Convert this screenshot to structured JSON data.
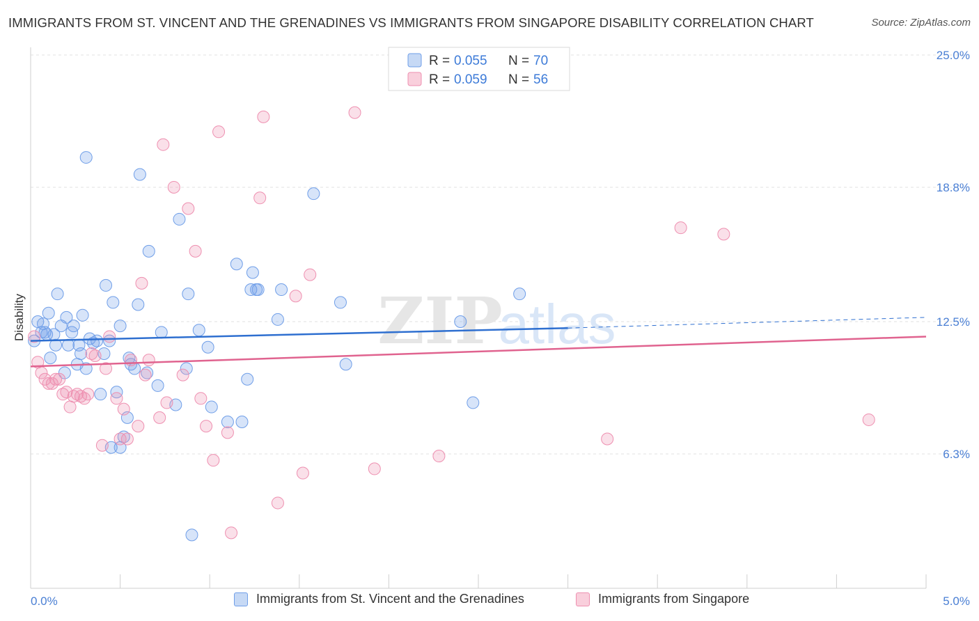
{
  "title": "IMMIGRANTS FROM ST. VINCENT AND THE GRENADINES VS IMMIGRANTS FROM SINGAPORE DISABILITY CORRELATION CHART",
  "source": "Source: ZipAtlas.com",
  "watermark": {
    "zip": "ZIP",
    "atlas": "atlas"
  },
  "legend_box": {
    "r_label": "R =",
    "n_label": "N =",
    "items": [
      {
        "r": "0.055",
        "n": "70",
        "color": "#6f9ee8"
      },
      {
        "r": "0.059",
        "n": "56",
        "color": "#ee8fb0"
      }
    ]
  },
  "chart_data": {
    "type": "scatter",
    "ylabel": "Disability",
    "xlim": [
      0,
      5
    ],
    "ylim": [
      0,
      25.0
    ],
    "x_ticks": [
      "0.0%",
      "5.0%"
    ],
    "y_ticks": [
      {
        "value": 25.0,
        "label": "25.0%"
      },
      {
        "value": 18.8,
        "label": "18.8%"
      },
      {
        "value": 12.5,
        "label": "12.5%"
      },
      {
        "value": 6.3,
        "label": "6.3%"
      }
    ],
    "grid": true,
    "series": [
      {
        "name": "Immigrants from St. Vincent and the Grenadines",
        "color": "#6f9ee8",
        "trend": {
          "x0": 0,
          "y0": 11.6,
          "x1": 3.0,
          "y1": 12.2,
          "dash_x1": 5.0,
          "dash_y1": 12.7
        },
        "points": [
          [
            0.02,
            11.6
          ],
          [
            0.04,
            12.5
          ],
          [
            0.06,
            12.0
          ],
          [
            0.07,
            12.4
          ],
          [
            0.08,
            12.0
          ],
          [
            0.09,
            11.9
          ],
          [
            0.1,
            12.9
          ],
          [
            0.11,
            10.8
          ],
          [
            0.13,
            11.9
          ],
          [
            0.14,
            11.4
          ],
          [
            0.15,
            13.8
          ],
          [
            0.17,
            12.3
          ],
          [
            0.19,
            10.1
          ],
          [
            0.2,
            12.7
          ],
          [
            0.21,
            11.4
          ],
          [
            0.23,
            12.0
          ],
          [
            0.24,
            12.3
          ],
          [
            0.26,
            10.5
          ],
          [
            0.27,
            11.4
          ],
          [
            0.28,
            11.0
          ],
          [
            0.29,
            12.8
          ],
          [
            0.31,
            10.3
          ],
          [
            0.31,
            20.2
          ],
          [
            0.33,
            11.7
          ],
          [
            0.35,
            11.5
          ],
          [
            0.37,
            11.6
          ],
          [
            0.39,
            9.1
          ],
          [
            0.41,
            11.0
          ],
          [
            0.42,
            14.2
          ],
          [
            0.44,
            11.6
          ],
          [
            0.46,
            13.4
          ],
          [
            0.48,
            9.2
          ],
          [
            0.5,
            12.3
          ],
          [
            0.52,
            7.1
          ],
          [
            0.54,
            8.0
          ],
          [
            0.56,
            10.5
          ],
          [
            0.58,
            10.3
          ],
          [
            0.6,
            13.3
          ],
          [
            0.61,
            19.4
          ],
          [
            0.66,
            15.8
          ],
          [
            0.71,
            9.5
          ],
          [
            0.73,
            12.0
          ],
          [
            0.81,
            8.6
          ],
          [
            0.83,
            17.3
          ],
          [
            0.87,
            10.3
          ],
          [
            0.88,
            13.8
          ],
          [
            0.9,
            2.5
          ],
          [
            0.94,
            12.1
          ],
          [
            0.99,
            11.3
          ],
          [
            1.01,
            8.5
          ],
          [
            1.1,
            7.8
          ],
          [
            1.15,
            15.2
          ],
          [
            1.18,
            7.8
          ],
          [
            1.21,
            9.8
          ],
          [
            1.23,
            14.0
          ],
          [
            1.24,
            14.8
          ],
          [
            1.26,
            14.0
          ],
          [
            1.27,
            14.0
          ],
          [
            1.38,
            12.6
          ],
          [
            1.4,
            14.0
          ],
          [
            1.58,
            18.5
          ],
          [
            1.73,
            13.4
          ],
          [
            1.76,
            10.5
          ],
          [
            2.4,
            12.5
          ],
          [
            2.47,
            8.7
          ],
          [
            2.73,
            13.8
          ],
          [
            0.5,
            6.6
          ],
          [
            0.45,
            6.6
          ],
          [
            0.55,
            10.8
          ],
          [
            0.65,
            10.1
          ]
        ]
      },
      {
        "name": "Immigrants from Singapore",
        "color": "#ee8fb0",
        "trend": {
          "x0": 0,
          "y0": 10.4,
          "x1": 5.0,
          "y1": 11.8
        },
        "points": [
          [
            0.02,
            11.8
          ],
          [
            0.04,
            10.6
          ],
          [
            0.06,
            10.1
          ],
          [
            0.08,
            9.8
          ],
          [
            0.1,
            9.6
          ],
          [
            0.12,
            9.6
          ],
          [
            0.14,
            9.8
          ],
          [
            0.16,
            9.8
          ],
          [
            0.18,
            9.1
          ],
          [
            0.2,
            9.2
          ],
          [
            0.22,
            8.5
          ],
          [
            0.24,
            9.0
          ],
          [
            0.26,
            9.1
          ],
          [
            0.28,
            9.0
          ],
          [
            0.3,
            8.9
          ],
          [
            0.32,
            9.1
          ],
          [
            0.34,
            11.0
          ],
          [
            0.36,
            10.9
          ],
          [
            0.4,
            6.7
          ],
          [
            0.42,
            10.3
          ],
          [
            0.44,
            11.8
          ],
          [
            0.48,
            8.9
          ],
          [
            0.5,
            7.0
          ],
          [
            0.52,
            8.4
          ],
          [
            0.54,
            7.0
          ],
          [
            0.56,
            10.7
          ],
          [
            0.6,
            7.6
          ],
          [
            0.62,
            14.3
          ],
          [
            0.64,
            10.0
          ],
          [
            0.66,
            10.7
          ],
          [
            0.72,
            8.0
          ],
          [
            0.74,
            20.8
          ],
          [
            0.76,
            8.7
          ],
          [
            0.8,
            18.8
          ],
          [
            0.85,
            10.0
          ],
          [
            0.88,
            17.8
          ],
          [
            0.92,
            15.8
          ],
          [
            0.95,
            8.9
          ],
          [
            0.98,
            7.6
          ],
          [
            1.02,
            6.0
          ],
          [
            1.05,
            21.4
          ],
          [
            1.1,
            7.3
          ],
          [
            1.12,
            2.6
          ],
          [
            1.28,
            18.3
          ],
          [
            1.3,
            22.1
          ],
          [
            1.38,
            4.0
          ],
          [
            1.48,
            13.7
          ],
          [
            1.52,
            5.4
          ],
          [
            1.56,
            14.7
          ],
          [
            1.81,
            22.3
          ],
          [
            1.92,
            5.6
          ],
          [
            2.28,
            6.2
          ],
          [
            3.22,
            7.0
          ],
          [
            3.63,
            16.9
          ],
          [
            3.87,
            16.6
          ],
          [
            4.68,
            7.9
          ]
        ]
      }
    ]
  },
  "bottom_legend": [
    {
      "label": "Immigrants from St. Vincent and the Grenadines",
      "fill": "#c6d9f5",
      "border": "#6f9ee8"
    },
    {
      "label": "Immigrants from Singapore",
      "fill": "#f9cfdc",
      "border": "#ee8fb0"
    }
  ]
}
